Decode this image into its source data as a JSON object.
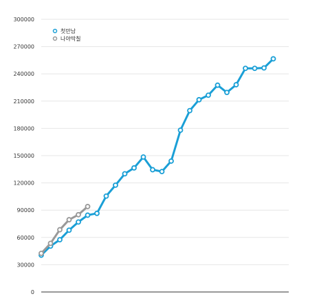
{
  "chart_data": {
    "type": "line",
    "ylim": [
      0,
      300000
    ],
    "yticks": [
      0,
      30000,
      60000,
      90000,
      120000,
      150000,
      180000,
      210000,
      240000,
      270000,
      300000
    ],
    "ytick_labels": [
      "0",
      "30000",
      "60000",
      "90000",
      "120000",
      "150000",
      "180000",
      "210000",
      "240000",
      "270000",
      "300000"
    ],
    "grid": true,
    "legend_position": "top-left",
    "series": [
      {
        "name": "첫만남",
        "color": "#1a9fd6",
        "values": [
          40500,
          50500,
          57500,
          68000,
          77000,
          84500,
          86500,
          105500,
          117500,
          130000,
          136500,
          148500,
          134500,
          132500,
          144000,
          178000,
          199500,
          211500,
          216500,
          227500,
          219500,
          228000,
          246000,
          246000,
          246500,
          256500
        ]
      },
      {
        "name": "나야딱칠",
        "color": "#999999",
        "values": [
          42500,
          53500,
          68500,
          79500,
          85000,
          94000
        ]
      }
    ]
  }
}
